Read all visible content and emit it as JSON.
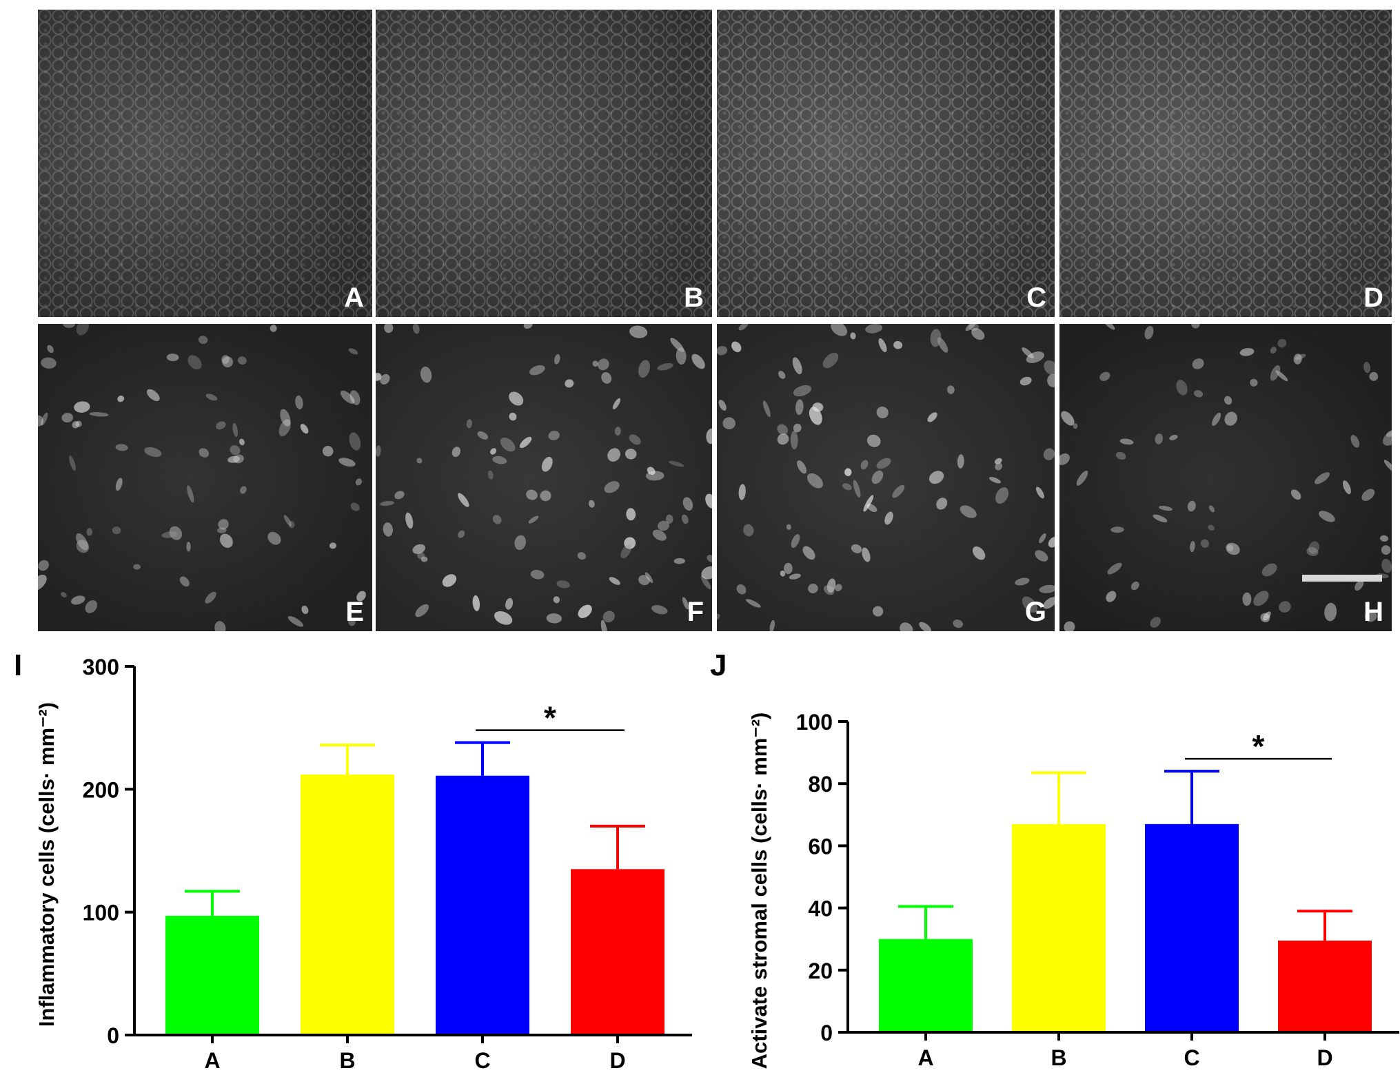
{
  "micrographs": [
    {
      "label": "A",
      "kind": "epithelium",
      "brightness": 0.55
    },
    {
      "label": "B",
      "kind": "epithelium",
      "brightness": 0.6
    },
    {
      "label": "C",
      "kind": "epithelium",
      "brightness": 0.68
    },
    {
      "label": "D",
      "kind": "epithelium",
      "brightness": 0.7
    },
    {
      "label": "E",
      "kind": "stroma",
      "brightness": 0.55
    },
    {
      "label": "F",
      "kind": "stroma",
      "brightness": 0.8
    },
    {
      "label": "G",
      "kind": "stroma",
      "brightness": 0.8
    },
    {
      "label": "H",
      "kind": "stroma",
      "brightness": 0.45
    }
  ],
  "chart_data": [
    {
      "panel_label": "I",
      "type": "bar",
      "categories": [
        "A",
        "B",
        "C",
        "D"
      ],
      "values": [
        97,
        212,
        211,
        135
      ],
      "errors": [
        20,
        24,
        27,
        35
      ],
      "colors": [
        "#00ff00",
        "#ffff00",
        "#0000ff",
        "#ff0000"
      ],
      "ylabel": "Inflammatory cells (cells· mm⁻²)",
      "ylim": [
        0,
        300
      ],
      "yticks": [
        0,
        100,
        200,
        300
      ],
      "grid": false,
      "significance": {
        "from": "C",
        "to": "D",
        "symbol": "*"
      }
    },
    {
      "panel_label": "J",
      "type": "bar",
      "categories": [
        "A",
        "B",
        "C",
        "D"
      ],
      "values": [
        30,
        67,
        67,
        29.5
      ],
      "errors": [
        10.5,
        16.5,
        17,
        9.5
      ],
      "colors": [
        "#00ff00",
        "#ffff00",
        "#0000ff",
        "#ff0000"
      ],
      "ylabel": "Activate stromal cells (cells· mm⁻²)",
      "ylim": [
        0,
        100
      ],
      "yticks": [
        0,
        20,
        40,
        60,
        80,
        100
      ],
      "grid": false,
      "significance": {
        "from": "C",
        "to": "D",
        "symbol": "*"
      }
    }
  ]
}
